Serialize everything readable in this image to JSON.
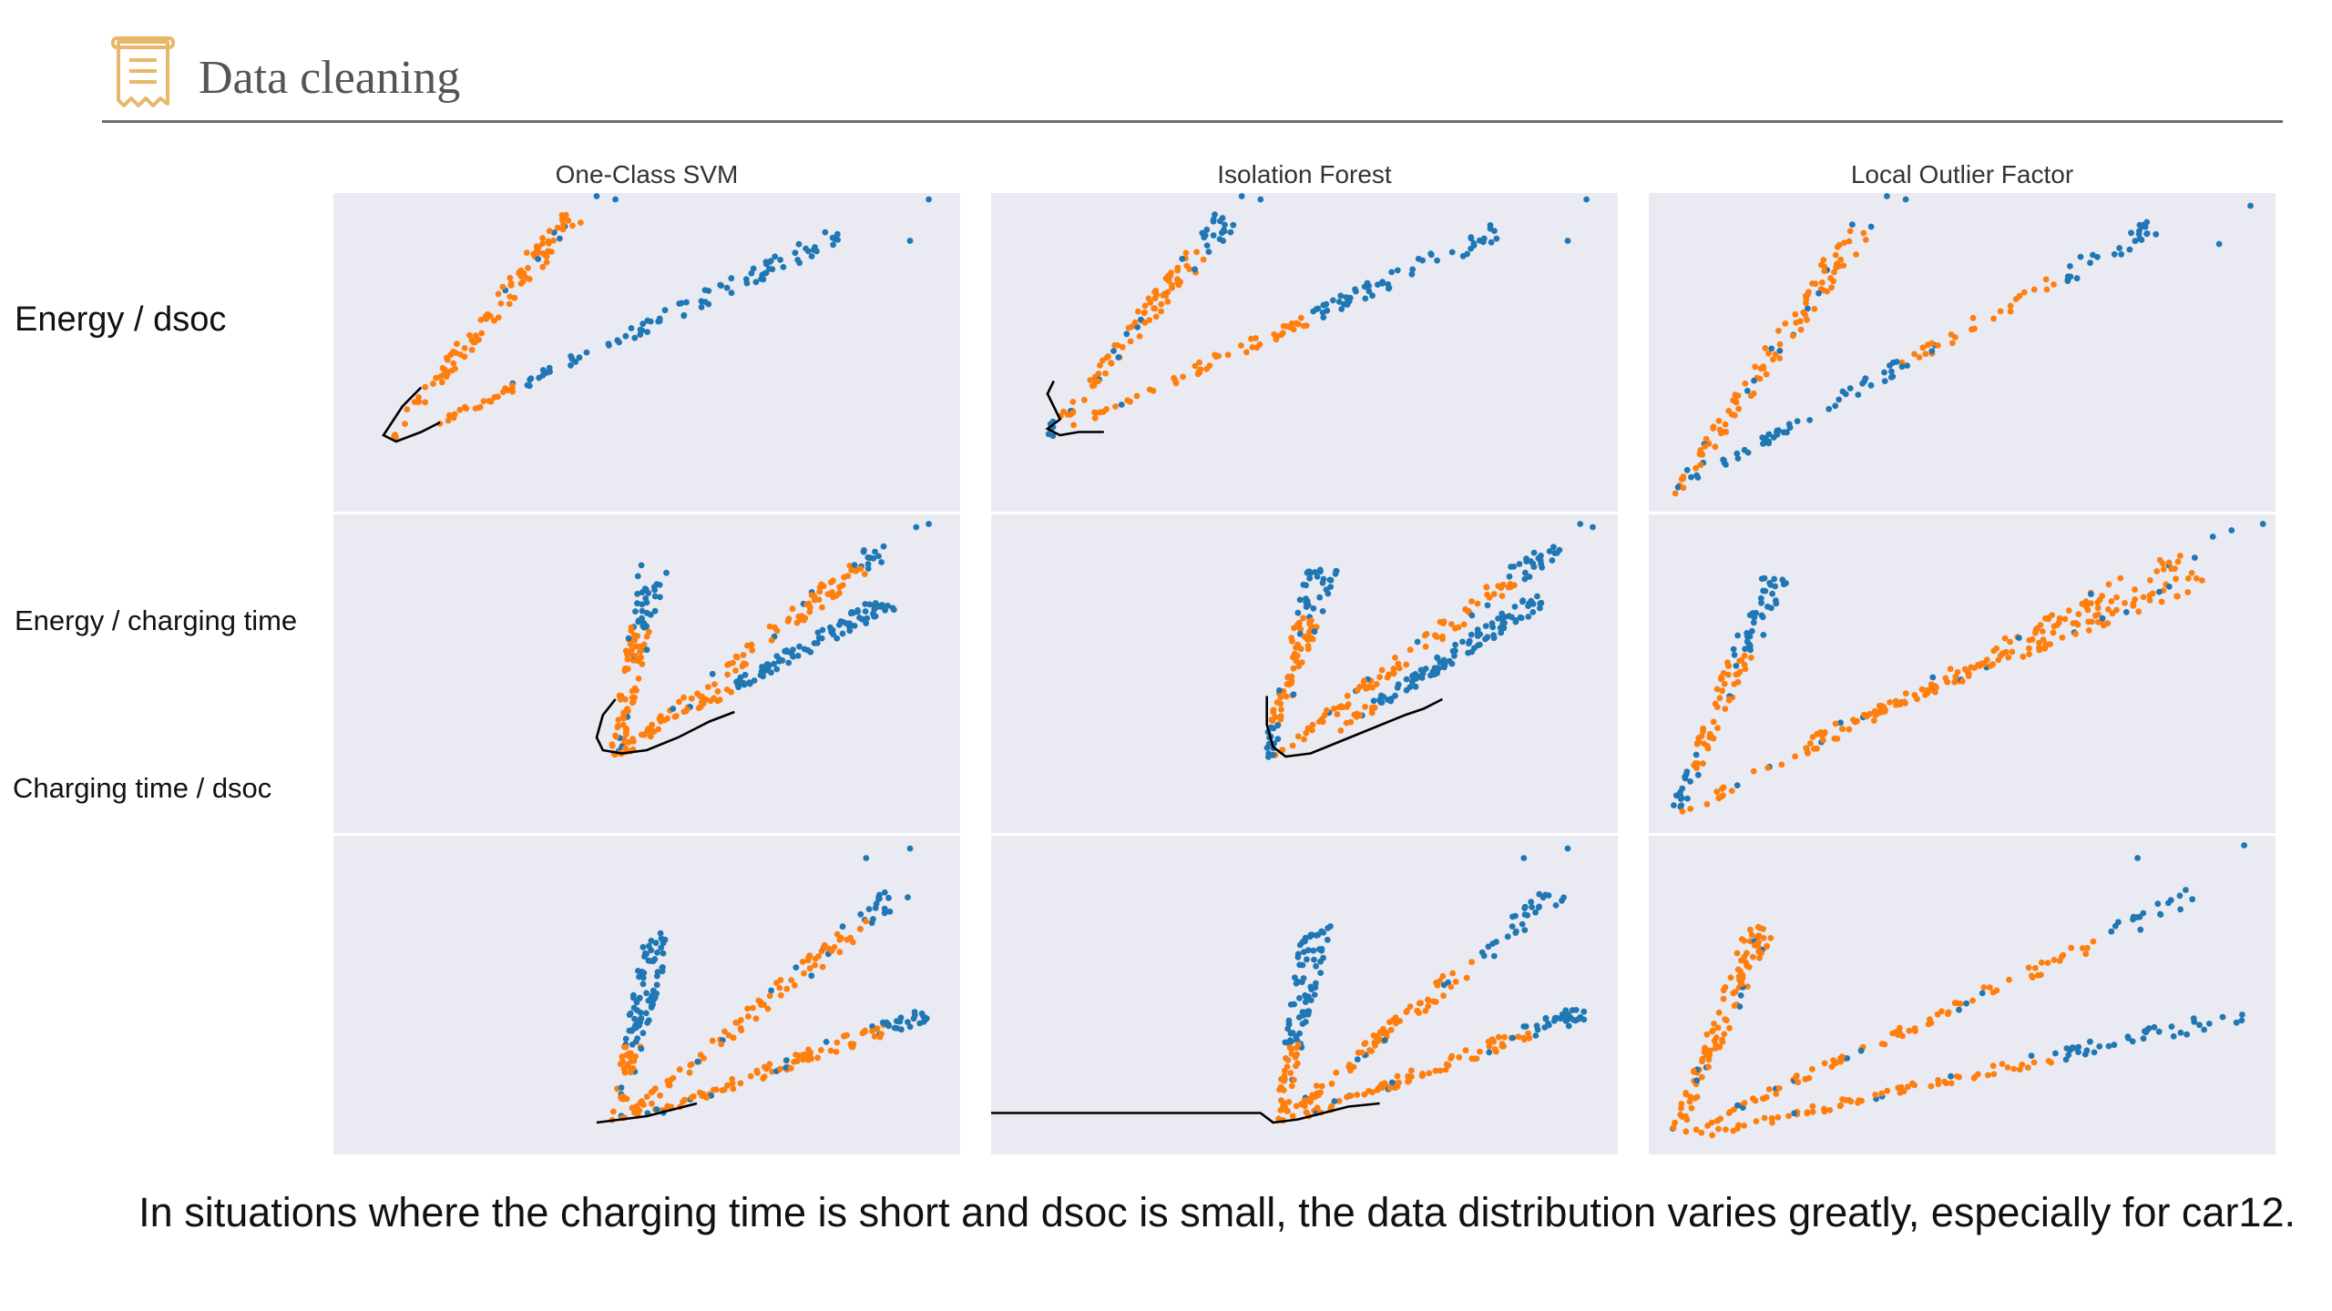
{
  "header": {
    "title": "Data cleaning",
    "icon": "receipt-icon",
    "accent_color": "#e8b86a"
  },
  "row_labels": [
    "Energy / dsoc",
    "Energy / charging time",
    "Charging time / dsoc"
  ],
  "caption": "In situations where the charging time is short and dsoc is small, the data distribution varies greatly, especially for car12.",
  "chart_data": {
    "type": "scatter",
    "layout": "3x3 grid, no axes, no tick labels",
    "colors": {
      "inlier": "#ff7f0e",
      "outlier": "#1f77b4",
      "boundary": "#000000",
      "panel_bg": "#eaeaf2"
    },
    "columns": [
      "One-Class SVM",
      "Isolation Forest",
      "Local Outlier Factor"
    ],
    "panels": [
      {
        "col": 0,
        "row": 0,
        "branches": [
          {
            "from": [
              0.09,
              0.23
            ],
            "to": [
              0.38,
              0.93
            ],
            "inlier": [
              0.0,
              1.0
            ]
          },
          {
            "from": [
              0.16,
              0.27
            ],
            "to": [
              0.82,
              0.88
            ],
            "inlier": [
              0.0,
              0.2
            ]
          }
        ],
        "far_points": [
          [
            0.42,
            0.99
          ],
          [
            0.45,
            0.98
          ],
          [
            0.92,
            0.85
          ],
          [
            0.95,
            0.98
          ]
        ],
        "boundary": [
          [
            0.14,
            0.39
          ],
          [
            0.11,
            0.33
          ],
          [
            0.08,
            0.24
          ],
          [
            0.1,
            0.22
          ],
          [
            0.14,
            0.25
          ],
          [
            0.17,
            0.28
          ]
        ]
      },
      {
        "col": 1,
        "row": 0,
        "branches": [
          {
            "from": [
              0.09,
              0.24
            ],
            "to": [
              0.38,
              0.93
            ],
            "inlier": [
              0.07,
              0.84
            ]
          },
          {
            "from": [
              0.12,
              0.26
            ],
            "to": [
              0.83,
              0.9
            ],
            "inlier": [
              0.0,
              0.55
            ]
          }
        ],
        "far_points": [
          [
            0.4,
            0.99
          ],
          [
            0.43,
            0.98
          ],
          [
            0.92,
            0.85
          ],
          [
            0.95,
            0.98
          ]
        ],
        "boundary": [
          [
            0.1,
            0.41
          ],
          [
            0.09,
            0.37
          ],
          [
            0.1,
            0.33
          ],
          [
            0.11,
            0.29
          ],
          [
            0.09,
            0.26
          ],
          [
            0.11,
            0.24
          ],
          [
            0.14,
            0.25
          ],
          [
            0.18,
            0.25
          ]
        ]
      },
      {
        "col": 2,
        "row": 0,
        "branches": [
          {
            "from": [
              0.04,
              0.05
            ],
            "to": [
              0.34,
              0.9
            ],
            "inlier": [
              0.0,
              0.99
            ]
          },
          {
            "from": [
              0.07,
              0.1
            ],
            "to": [
              0.82,
              0.91
            ],
            "inlier": [
              0.45,
              0.77
            ]
          }
        ],
        "far_points": [
          [
            0.38,
            0.99
          ],
          [
            0.41,
            0.98
          ],
          [
            0.91,
            0.84
          ],
          [
            0.96,
            0.96
          ]
        ],
        "boundary": []
      },
      {
        "col": 0,
        "row": 1,
        "branches": [
          {
            "from": [
              0.45,
              0.23
            ],
            "to": [
              0.51,
              0.84
            ],
            "inlier": [
              0.0,
              0.68
            ]
          },
          {
            "from": [
              0.46,
              0.25
            ],
            "to": [
              0.88,
              0.9
            ],
            "inlier": [
              0.0,
              0.9
            ]
          },
          {
            "from": [
              0.55,
              0.36
            ],
            "to": [
              0.88,
              0.72
            ],
            "inlier": [
              0.0,
              0.25
            ]
          }
        ],
        "far_points": [
          [
            0.93,
            0.96
          ],
          [
            0.95,
            0.97
          ]
        ],
        "boundary": [
          [
            0.45,
            0.42
          ],
          [
            0.43,
            0.37
          ],
          [
            0.42,
            0.3
          ],
          [
            0.43,
            0.26
          ],
          [
            0.46,
            0.25
          ],
          [
            0.5,
            0.26
          ],
          [
            0.55,
            0.3
          ],
          [
            0.6,
            0.35
          ],
          [
            0.64,
            0.38
          ]
        ]
      },
      {
        "col": 1,
        "row": 1,
        "branches": [
          {
            "from": [
              0.44,
              0.23
            ],
            "to": [
              0.53,
              0.84
            ],
            "inlier": [
              0.18,
              0.73
            ]
          },
          {
            "from": [
              0.45,
              0.24
            ],
            "to": [
              0.9,
              0.9
            ],
            "inlier": [
              0.0,
              0.84
            ]
          },
          {
            "from": [
              0.55,
              0.32
            ],
            "to": [
              0.88,
              0.74
            ],
            "inlier": [
              0.0,
              0.2
            ]
          }
        ],
        "far_points": [
          [
            0.94,
            0.97
          ],
          [
            0.96,
            0.96
          ]
        ],
        "boundary": [
          [
            0.44,
            0.43
          ],
          [
            0.44,
            0.34
          ],
          [
            0.45,
            0.27
          ],
          [
            0.47,
            0.24
          ],
          [
            0.51,
            0.25
          ],
          [
            0.56,
            0.29
          ],
          [
            0.61,
            0.33
          ],
          [
            0.66,
            0.37
          ],
          [
            0.69,
            0.39
          ],
          [
            0.72,
            0.42
          ]
        ]
      },
      {
        "col": 2,
        "row": 1,
        "branches": [
          {
            "from": [
              0.04,
              0.05
            ],
            "to": [
              0.2,
              0.8
            ],
            "inlier": [
              0.2,
              0.68
            ]
          },
          {
            "from": [
              0.05,
              0.06
            ],
            "to": [
              0.86,
              0.88
            ],
            "inlier": [
              0.0,
              1.0
            ]
          },
          {
            "from": [
              0.26,
              0.3
            ],
            "to": [
              0.88,
              0.8
            ],
            "inlier": [
              0.0,
              1.0
            ]
          }
        ],
        "far_points": [
          [
            0.9,
            0.93
          ],
          [
            0.93,
            0.95
          ],
          [
            0.98,
            0.97
          ]
        ],
        "boundary": []
      },
      {
        "col": 0,
        "row": 2,
        "branches": [
          {
            "from": [
              0.45,
              0.1
            ],
            "to": [
              0.52,
              0.7
            ],
            "inlier": [
              0.0,
              0.4
            ]
          },
          {
            "from": [
              0.46,
              0.1
            ],
            "to": [
              0.9,
              0.82
            ],
            "inlier": [
              0.0,
              0.88
            ]
          },
          {
            "from": [
              0.5,
              0.12
            ],
            "to": [
              0.95,
              0.45
            ],
            "inlier": [
              0.0,
              0.85
            ]
          }
        ],
        "far_points": [
          [
            0.85,
            0.93
          ],
          [
            0.92,
            0.96
          ]
        ],
        "boundary": [
          [
            0.42,
            0.1
          ],
          [
            0.46,
            0.11
          ],
          [
            0.5,
            0.12
          ],
          [
            0.54,
            0.14
          ],
          [
            0.58,
            0.16
          ]
        ]
      },
      {
        "col": 1,
        "row": 2,
        "branches": [
          {
            "from": [
              0.46,
              0.1
            ],
            "to": [
              0.52,
              0.72
            ],
            "inlier": [
              0.0,
              0.4
            ]
          },
          {
            "from": [
              0.46,
              0.1
            ],
            "to": [
              0.9,
              0.82
            ],
            "inlier": [
              0.0,
              0.7
            ]
          },
          {
            "from": [
              0.5,
              0.12
            ],
            "to": [
              0.95,
              0.45
            ],
            "inlier": [
              0.0,
              0.8
            ]
          }
        ],
        "far_points": [
          [
            0.85,
            0.93
          ],
          [
            0.92,
            0.96
          ]
        ],
        "boundary": [
          [
            0.0,
            0.13
          ],
          [
            0.43,
            0.13
          ],
          [
            0.45,
            0.1
          ],
          [
            0.49,
            0.11
          ],
          [
            0.53,
            0.13
          ],
          [
            0.57,
            0.15
          ],
          [
            0.62,
            0.16
          ]
        ]
      },
      {
        "col": 2,
        "row": 2,
        "branches": [
          {
            "from": [
              0.04,
              0.05
            ],
            "to": [
              0.18,
              0.72
            ],
            "inlier": [
              0.0,
              1.0
            ]
          },
          {
            "from": [
              0.06,
              0.07
            ],
            "to": [
              0.88,
              0.82
            ],
            "inlier": [
              0.0,
              0.82
            ]
          },
          {
            "from": [
              0.08,
              0.06
            ],
            "to": [
              0.95,
              0.44
            ],
            "inlier": [
              0.0,
              0.65
            ]
          }
        ],
        "far_points": [
          [
            0.78,
            0.93
          ],
          [
            0.95,
            0.97
          ]
        ],
        "boundary": []
      }
    ]
  }
}
